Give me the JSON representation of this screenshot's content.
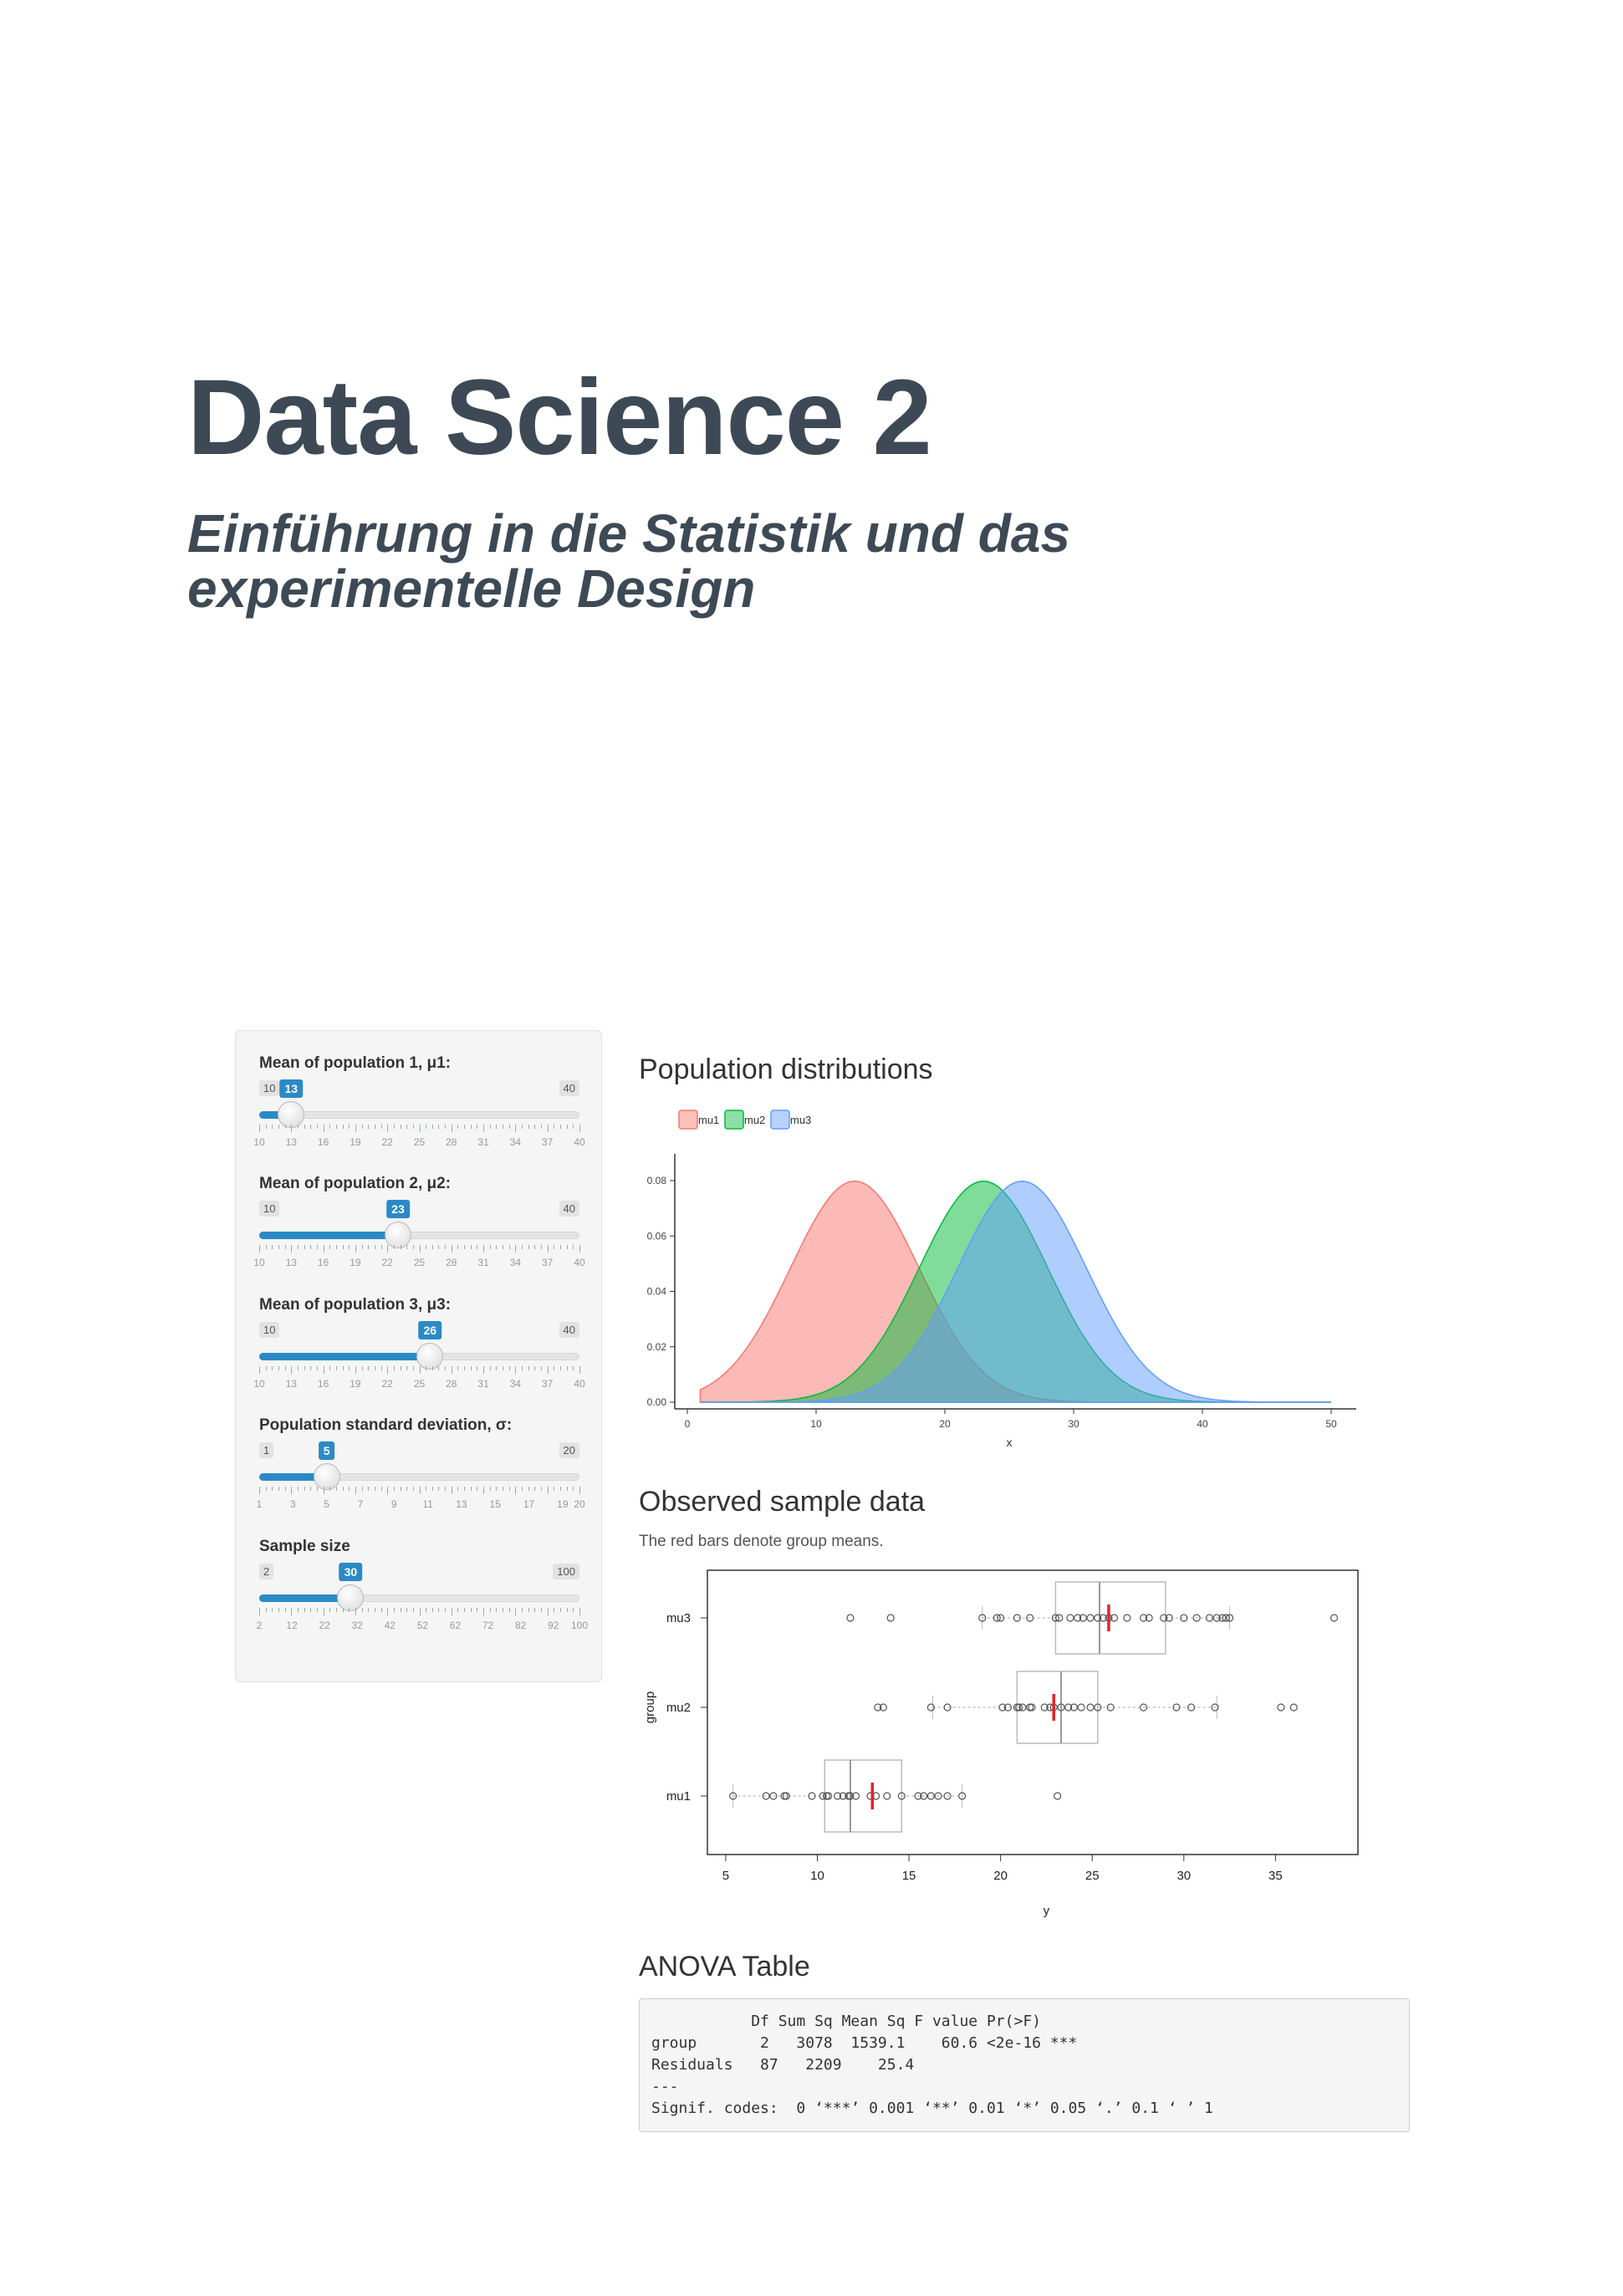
{
  "title": "Data Science 2",
  "subtitle_line1": "Einführung in die Statistik und das",
  "subtitle_line2": "experimentelle Design",
  "controls": {
    "sliders": [
      {
        "label": "Mean of population 1, μ1:",
        "min": 10,
        "max": 40,
        "value": 13,
        "ticks": [
          "10",
          "13",
          "16",
          "19",
          "22",
          "25",
          "28",
          "31",
          "34",
          "37",
          "40"
        ]
      },
      {
        "label": "Mean of population 2, μ2:",
        "min": 10,
        "max": 40,
        "value": 23,
        "ticks": [
          "10",
          "13",
          "16",
          "19",
          "22",
          "25",
          "28",
          "31",
          "34",
          "37",
          "40"
        ]
      },
      {
        "label": "Mean of population 3, μ3:",
        "min": 10,
        "max": 40,
        "value": 26,
        "ticks": [
          "10",
          "13",
          "16",
          "19",
          "22",
          "25",
          "28",
          "31",
          "34",
          "37",
          "40"
        ]
      },
      {
        "label": "Population standard deviation, σ:",
        "min": 1,
        "max": 20,
        "value": 5,
        "ticks": [
          "1",
          "3",
          "5",
          "7",
          "9",
          "11",
          "13",
          "15",
          "17",
          "19",
          "20"
        ]
      },
      {
        "label": "Sample size",
        "min": 2,
        "max": 100,
        "value": 30,
        "ticks": [
          "2",
          "12",
          "22",
          "32",
          "42",
          "52",
          "62",
          "72",
          "82",
          "92",
          "100"
        ]
      }
    ]
  },
  "distributions": {
    "heading": "Population distributions",
    "legend": [
      {
        "label": "mu1",
        "color": "#f8766d"
      },
      {
        "label": "mu2",
        "color": "#00ba38"
      },
      {
        "label": "mu3",
        "color": "#619cff"
      }
    ]
  },
  "samples": {
    "heading": "Observed sample data",
    "note": "The red bars denote group means."
  },
  "anova": {
    "heading": "ANOVA Table",
    "text": "           Df Sum Sq Mean Sq F value Pr(>F)    \ngroup       2   3078  1539.1    60.6 <2e-16 ***\nResiduals   87   2209    25.4                   \n---\nSignif. codes:  0 ‘***’ 0.001 ‘**’ 0.01 ‘*’ 0.05 ‘.’ 0.1 ‘ ’ 1"
  },
  "chart_data": [
    {
      "type": "area",
      "title": "Population distributions",
      "xlabel": "x",
      "ylabel": "",
      "xlim": [
        0,
        50
      ],
      "ylim": [
        0,
        0.08
      ],
      "x_ticks": [
        "0",
        "10",
        "20",
        "30",
        "40",
        "50"
      ],
      "y_ticks": [
        "0.00",
        "0.02",
        "0.04",
        "0.06",
        "0.08"
      ],
      "legend_position": "top-left",
      "series": [
        {
          "name": "mu1",
          "mean": 13,
          "sd": 5,
          "x_range": [
            1,
            50
          ],
          "color": "#f8766d"
        },
        {
          "name": "mu2",
          "mean": 23,
          "sd": 5,
          "x_range": [
            1,
            50
          ],
          "color": "#00ba38"
        },
        {
          "name": "mu3",
          "mean": 26,
          "sd": 5,
          "x_range": [
            1,
            50
          ],
          "color": "#619cff"
        }
      ]
    },
    {
      "type": "box",
      "title": "Observed sample data",
      "xlabel": "y",
      "ylabel": "group",
      "xlim": [
        4,
        39.5
      ],
      "x_ticks": [
        "5",
        "10",
        "15",
        "20",
        "25",
        "30",
        "35"
      ],
      "categories": [
        "mu3",
        "mu2",
        "mu1"
      ],
      "groups": [
        {
          "name": "mu3",
          "whisker_low": 19,
          "q1": 23,
          "median": 25.4,
          "q3": 29,
          "whisker_high": 32.5,
          "mean": 25.9,
          "points": [
            11.8,
            14,
            19,
            19.8,
            20,
            20.9,
            21.6,
            23,
            23.2,
            23.8,
            24.2,
            24.5,
            24.9,
            25.3,
            25.6,
            25.9,
            26.2,
            26.9,
            27.8,
            28.1,
            28.9,
            29.2,
            30,
            30.7,
            31.4,
            31.8,
            32.1,
            32.3,
            32.5,
            38.2
          ]
        },
        {
          "name": "mu2",
          "whisker_low": 16.3,
          "q1": 20.9,
          "median": 23.3,
          "q3": 25.3,
          "whisker_high": 31.8,
          "mean": 22.9,
          "points": [
            13.3,
            13.6,
            16.2,
            17.1,
            20.1,
            20.4,
            20.9,
            21,
            21.2,
            21.6,
            21.7,
            22.4,
            22.7,
            22.9,
            23.3,
            23.7,
            24,
            24.4,
            24.9,
            25.3,
            26,
            27.8,
            29.6,
            30.4,
            31.7,
            35.3,
            36
          ]
        },
        {
          "name": "mu1",
          "whisker_low": 5.4,
          "q1": 10.4,
          "median": 11.8,
          "q3": 14.6,
          "whisker_high": 17.9,
          "mean": 13,
          "points": [
            5.4,
            7.2,
            7.6,
            8.2,
            8.3,
            9.7,
            10.3,
            10.5,
            10.6,
            11.1,
            11.4,
            11.7,
            11.8,
            12.1,
            12.9,
            13.2,
            13.8,
            14.6,
            15.5,
            15.8,
            16.2,
            16.6,
            17.1,
            17.9,
            23.1
          ]
        }
      ]
    }
  ]
}
